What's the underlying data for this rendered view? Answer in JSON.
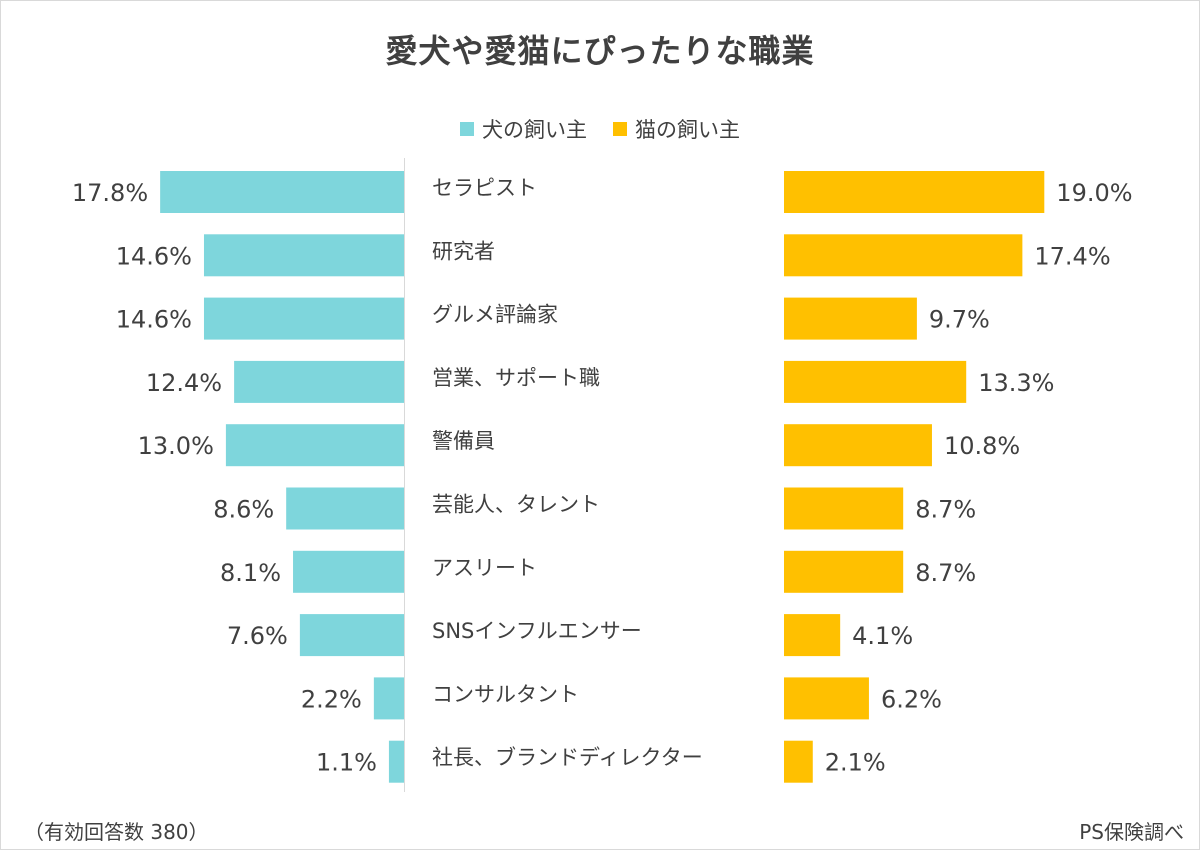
{
  "chart_data": {
    "type": "bar",
    "title": "愛犬や愛猫にぴったりな職業",
    "categories": [
      "セラピスト",
      "研究者",
      "グルメ評論家",
      "営業、サポート職",
      "警備員",
      "芸能人、タレント",
      "アスリート",
      "SNSインフルエンサー",
      "コンサルタント",
      "社長、ブランドディレクター"
    ],
    "series": [
      {
        "name": "犬の飼い主",
        "color": "#7ed6dc",
        "values": [
          17.8,
          14.6,
          14.6,
          12.4,
          13.0,
          8.6,
          8.1,
          7.6,
          2.2,
          1.1
        ],
        "labels": [
          "17.8%",
          "14.6%",
          "14.6%",
          "12.4%",
          "13.0%",
          "8.6%",
          "8.1%",
          "7.6%",
          "2.2%",
          "1.1%"
        ]
      },
      {
        "name": "猫の飼い主",
        "color": "#ffc000",
        "values": [
          19.0,
          17.4,
          9.7,
          13.3,
          10.8,
          8.7,
          8.7,
          4.1,
          6.2,
          2.1
        ],
        "labels": [
          "19.0%",
          "17.4%",
          "9.7%",
          "13.3%",
          "10.8%",
          "8.7%",
          "8.7%",
          "4.1%",
          "6.2%",
          "2.1%"
        ]
      }
    ],
    "xlim": [
      0,
      20
    ],
    "legend": "top-center"
  },
  "footnote": "（有効回答数 380）",
  "source": "PS保険調べ"
}
